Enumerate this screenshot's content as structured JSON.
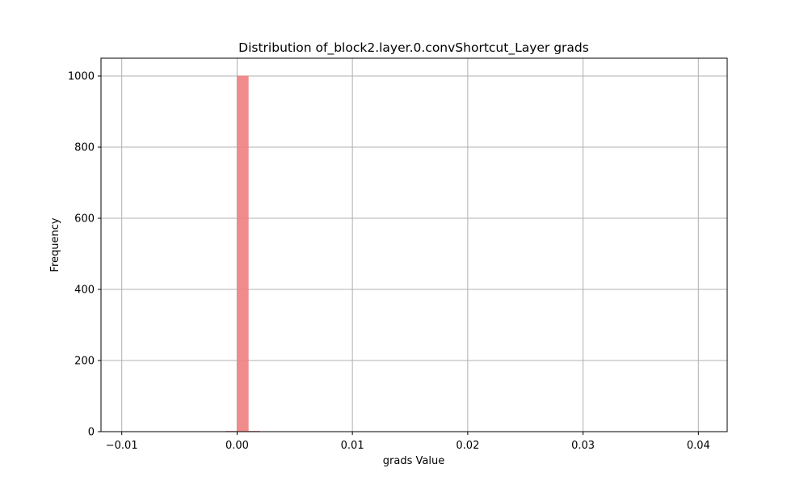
{
  "chart_data": {
    "type": "bar",
    "title": "Distribution of_block2.layer.0.convShortcut_Layer grads",
    "xlabel": "grads Value",
    "ylabel": "Frequency",
    "xlim": [
      -0.0118,
      0.0425
    ],
    "ylim": [
      0,
      1050
    ],
    "grid": true,
    "bar_color": "#f08080",
    "bar_opacity": 0.9,
    "x_ticks": [
      {
        "value": -0.01,
        "label": "−0.01"
      },
      {
        "value": 0.0,
        "label": "0.00"
      },
      {
        "value": 0.01,
        "label": "0.01"
      },
      {
        "value": 0.02,
        "label": "0.02"
      },
      {
        "value": 0.03,
        "label": "0.03"
      },
      {
        "value": 0.04,
        "label": "0.04"
      }
    ],
    "y_ticks": [
      {
        "value": 0,
        "label": "0"
      },
      {
        "value": 200,
        "label": "200"
      },
      {
        "value": 400,
        "label": "400"
      },
      {
        "value": 600,
        "label": "600"
      },
      {
        "value": 800,
        "label": "800"
      },
      {
        "value": 1000,
        "label": "1000"
      }
    ],
    "bins": [
      {
        "x0": -0.001,
        "x1": 0.0,
        "count": 2
      },
      {
        "x0": 0.0,
        "x1": 0.001,
        "count": 1001
      },
      {
        "x0": 0.001,
        "x1": 0.002,
        "count": 2
      }
    ]
  }
}
